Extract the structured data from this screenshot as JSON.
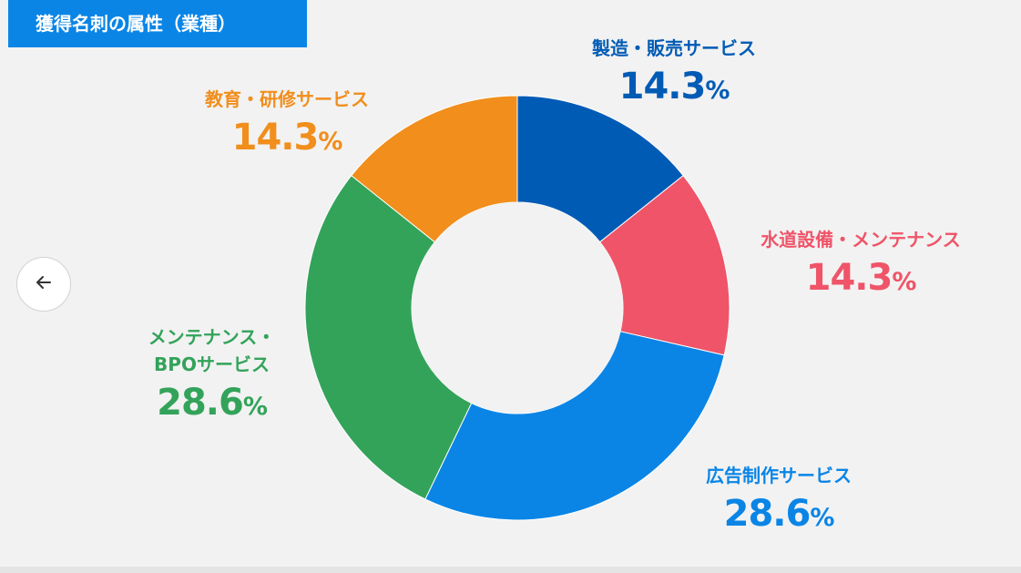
{
  "header": {
    "title": "獲得名刺の属性（業種）"
  },
  "nav": {
    "back_icon": "arrow-left-icon"
  },
  "colors": {
    "manufacturing": "#005bb5",
    "water": "#ef5468",
    "advertising": "#0a85e6",
    "maintenance": "#33a35a",
    "education": "#f18e1c"
  },
  "chart_data": {
    "type": "donut",
    "title": "獲得名刺の属性（業種）",
    "unit": "%",
    "slices": [
      {
        "label": "製造・販売サービス",
        "value": 14.3,
        "display": "14.3",
        "color": "#005bb5"
      },
      {
        "label": "水道設備・メンテナンス",
        "value": 14.3,
        "display": "14.3",
        "color": "#ef5468"
      },
      {
        "label": "広告制作サービス",
        "value": 28.6,
        "display": "28.6",
        "color": "#0a85e6"
      },
      {
        "label": "メンテナンス・BPOサービス",
        "lines": [
          "メンテナンス・",
          "BPOサービス"
        ],
        "value": 28.6,
        "display": "28.6",
        "color": "#33a35a"
      },
      {
        "label": "教育・研修サービス",
        "value": 14.3,
        "display": "14.3",
        "color": "#f18e1c"
      }
    ]
  }
}
